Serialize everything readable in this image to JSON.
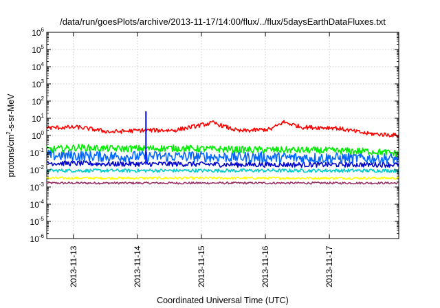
{
  "chart_data": {
    "type": "line",
    "title": "/data/run/goesPlots/archive/2013-11-17/14:00/flux/../flux/5daysEarthDataFluxes.txt",
    "xlabel": "Coordinated Universal Time (UTC)",
    "ylabel": "protons/cm²-s-sr-MeV",
    "ylabel_parts": [
      "protons/cm",
      "2",
      "-s-sr-MeV"
    ],
    "y_scale": "log",
    "ylim_exponents": [
      -6,
      6
    ],
    "y_tick_labels": [
      {
        "base": "10",
        "exp": "6"
      },
      {
        "base": "10",
        "exp": "5"
      },
      {
        "base": "10",
        "exp": "4"
      },
      {
        "base": "10",
        "exp": "3"
      },
      {
        "base": "10",
        "exp": "2"
      },
      {
        "base": "10",
        "exp": "1"
      },
      {
        "base": "10",
        "exp": "0"
      },
      {
        "base": "10",
        "exp": "-1"
      },
      {
        "base": "10",
        "exp": "-2"
      },
      {
        "base": "10",
        "exp": "-3"
      },
      {
        "base": "10",
        "exp": "-4"
      },
      {
        "base": "10",
        "exp": "-5"
      },
      {
        "base": "10",
        "exp": "-6"
      }
    ],
    "x_range": [
      "2013-11-12 14:00",
      "2013-11-17 14:00"
    ],
    "x_tick_labels": [
      "2013-11-13",
      "2013-11-14",
      "2013-11-15",
      "2013-11-16",
      "2013-11-17"
    ],
    "grid": true,
    "series": [
      {
        "color": "#ff0000",
        "approx_values": [
          [
            0,
            2.8
          ],
          [
            0.5,
            3.0
          ],
          [
            1.0,
            1.6
          ],
          [
            1.5,
            2.0
          ],
          [
            2.0,
            2.0
          ],
          [
            2.6,
            5.5
          ],
          [
            3.0,
            1.8
          ],
          [
            3.5,
            2.3
          ],
          [
            3.7,
            6.0
          ],
          [
            4.0,
            3.0
          ],
          [
            4.5,
            2.8
          ],
          [
            5.0,
            1.3
          ],
          [
            5.5,
            1.0
          ]
        ],
        "noise_decades": 0.12
      },
      {
        "color": "#00ee00",
        "approx_values": [
          [
            0,
            0.15
          ],
          [
            0.5,
            0.2
          ],
          [
            1.0,
            0.17
          ],
          [
            2.0,
            0.18
          ],
          [
            3.0,
            0.15
          ],
          [
            4.0,
            0.14
          ],
          [
            5.0,
            0.12
          ],
          [
            5.5,
            0.09
          ]
        ],
        "noise_decades": 0.2
      },
      {
        "color": "#0066ff",
        "approx_values": [
          [
            0,
            0.07
          ],
          [
            1.0,
            0.06
          ],
          [
            2.0,
            0.06
          ],
          [
            3.0,
            0.055
          ],
          [
            4.0,
            0.05
          ],
          [
            5.5,
            0.045
          ]
        ],
        "noise_decades": 0.32
      },
      {
        "color": "#0000cc",
        "approx_values": [
          [
            0,
            0.025
          ],
          [
            1.0,
            0.022
          ],
          [
            2.0,
            0.022
          ],
          [
            3.0,
            0.02
          ],
          [
            4.0,
            0.02
          ],
          [
            5.5,
            0.02
          ]
        ],
        "noise_decades": 0.15
      },
      {
        "color": "#00cccc",
        "approx_values": [
          [
            0,
            0.009
          ],
          [
            2.0,
            0.009
          ],
          [
            4.0,
            0.009
          ],
          [
            5.5,
            0.009
          ]
        ],
        "noise_decades": 0.1
      },
      {
        "color": "#ffff00",
        "approx_values": [
          [
            0,
            0.0033
          ],
          [
            2.0,
            0.0033
          ],
          [
            4.0,
            0.0033
          ],
          [
            5.5,
            0.0033
          ]
        ],
        "noise_decades": 0.07
      },
      {
        "color": "#993366",
        "approx_values": [
          [
            0,
            0.0017
          ],
          [
            2.0,
            0.0017
          ],
          [
            4.0,
            0.0017
          ],
          [
            5.5,
            0.0017
          ]
        ],
        "noise_decades": 0.06
      }
    ],
    "spike": {
      "color": "#0000ff",
      "x_day": 1.55,
      "y_from": 0.02,
      "y_to": 25
    }
  }
}
